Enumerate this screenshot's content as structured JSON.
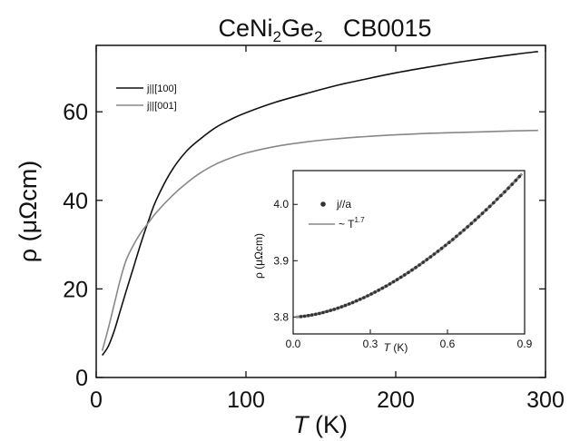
{
  "chart_data": [
    {
      "type": "line",
      "title": {
        "base": "CeNi",
        "sub1": "2",
        "mid": "Ge",
        "sub2": "2",
        "tail": "   CB0015"
      },
      "xlabel": {
        "italic": "T",
        "rest": " (K)"
      },
      "ylabel": "ρ (μΩcm)",
      "xlim": [
        0,
        300
      ],
      "ylim": [
        0,
        75
      ],
      "xticks": [
        0,
        100,
        200,
        300
      ],
      "xtick_labels": [
        "0",
        "100",
        "200",
        "300"
      ],
      "yticks": [
        0,
        20,
        40,
        60
      ],
      "ytick_labels": [
        "0",
        "20",
        "40",
        "60"
      ],
      "grid": false,
      "legend_position": "top-left",
      "series": [
        {
          "name": "j||[100]",
          "color": "#111111",
          "x": [
            4,
            8,
            12,
            16,
            20,
            25,
            30,
            35,
            40,
            50,
            60,
            70,
            80,
            90,
            100,
            120,
            140,
            160,
            180,
            200,
            220,
            240,
            260,
            280,
            295
          ],
          "y": [
            5,
            7,
            10.5,
            15,
            19.5,
            25,
            30.5,
            35.5,
            40,
            46.5,
            51,
            54,
            56.5,
            58.3,
            59.8,
            62.2,
            64.1,
            65.9,
            67.4,
            68.8,
            70,
            71.1,
            72.1,
            73,
            73.6
          ]
        },
        {
          "name": "j||[001]",
          "color": "#888888",
          "x": [
            4,
            8,
            12,
            16,
            20,
            25,
            30,
            35,
            40,
            50,
            60,
            70,
            80,
            90,
            100,
            120,
            140,
            160,
            180,
            200,
            220,
            240,
            260,
            280,
            295
          ],
          "y": [
            6,
            11,
            16.5,
            22,
            26.5,
            30,
            32.8,
            35,
            37.2,
            40.8,
            43.8,
            46.3,
            48.2,
            49.6,
            50.7,
            52.2,
            53.2,
            53.9,
            54.4,
            54.8,
            55.1,
            55.3,
            55.5,
            55.7,
            55.8
          ]
        }
      ]
    },
    {
      "type": "scatter",
      "ylabel": "ρ (μΩcm)",
      "xlabel": {
        "italic": "T",
        "rest": " (K)"
      },
      "xlim": [
        0,
        0.9
      ],
      "ylim": [
        3.77,
        4.06
      ],
      "xticks": [
        0,
        0.3,
        0.6,
        0.9
      ],
      "xtick_labels": [
        "0.0",
        "0.3",
        "0.6",
        "0.9"
      ],
      "yticks": [
        3.8,
        3.9,
        4.0
      ],
      "ytick_labels": [
        "3.8",
        "3.9",
        "4.0"
      ],
      "legend_position": "top-left",
      "series": [
        {
          "name": "j//a",
          "color": "#333333",
          "marker": "circle",
          "rho0": 3.8,
          "A": 0.31,
          "exponent": 1.7,
          "x_start": 0.03,
          "x_end": 0.88,
          "count": 60
        },
        {
          "name_prefix": "~ T",
          "name_sup": "1.7",
          "color": "#888888",
          "rho0": 3.8,
          "A": 0.31,
          "exponent": 1.7,
          "x_start": 0.01,
          "x_end": 0.89
        }
      ]
    }
  ]
}
